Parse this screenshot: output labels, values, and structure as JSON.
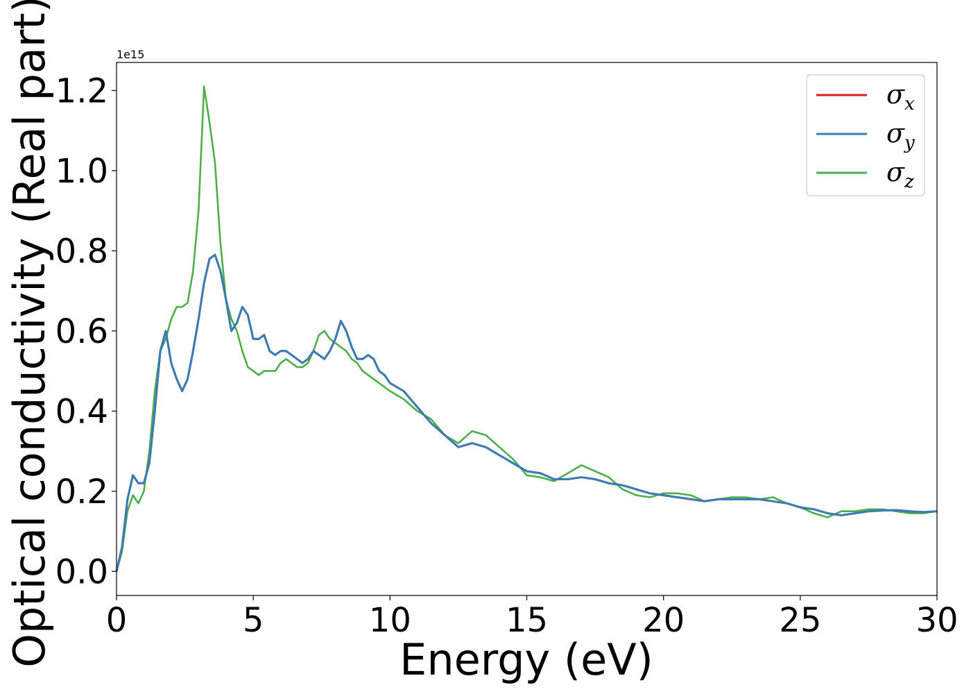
{
  "chart_data": {
    "type": "line",
    "title": "",
    "xlabel": "Energy (eV)",
    "ylabel": "Optical conductivity (Real part)",
    "y_offset_label": "1e15",
    "xlim": [
      0,
      30
    ],
    "ylim": [
      -0.06,
      1.27
    ],
    "x_ticks": [
      0,
      5,
      10,
      15,
      20,
      25,
      30
    ],
    "x_tick_labels": [
      "0",
      "5",
      "10",
      "15",
      "20",
      "25",
      "30"
    ],
    "y_ticks": [
      0.0,
      0.2,
      0.4,
      0.6,
      0.8,
      1.0,
      1.2
    ],
    "y_tick_labels": [
      "0.0",
      "0.2",
      "0.4",
      "0.6",
      "0.8",
      "1.0",
      "1.2"
    ],
    "grid": false,
    "legend_position": "top-right",
    "x": [
      0,
      0.2,
      0.4,
      0.6,
      0.8,
      1.0,
      1.2,
      1.4,
      1.6,
      1.8,
      2.0,
      2.2,
      2.4,
      2.6,
      2.8,
      3.0,
      3.2,
      3.4,
      3.6,
      3.8,
      4.0,
      4.2,
      4.4,
      4.6,
      4.8,
      5.0,
      5.2,
      5.4,
      5.6,
      5.8,
      6.0,
      6.2,
      6.4,
      6.6,
      6.8,
      7.0,
      7.2,
      7.4,
      7.6,
      7.8,
      8.0,
      8.2,
      8.4,
      8.6,
      8.8,
      9.0,
      9.2,
      9.4,
      9.6,
      9.8,
      10.0,
      10.5,
      11.0,
      11.5,
      12.0,
      12.5,
      13.0,
      13.5,
      14.0,
      14.5,
      15.0,
      15.5,
      16.0,
      16.5,
      17.0,
      17.5,
      18.0,
      18.5,
      19.0,
      19.5,
      20.0,
      20.5,
      21.0,
      21.5,
      22.0,
      22.5,
      23.0,
      23.5,
      24.0,
      24.5,
      25.0,
      25.5,
      26.0,
      26.5,
      27.0,
      27.5,
      28.0,
      28.5,
      29.0,
      29.5,
      30.0
    ],
    "series": [
      {
        "name": "σx",
        "color": "#e41a1c",
        "values": [
          0.0,
          0.06,
          0.18,
          0.24,
          0.22,
          0.22,
          0.27,
          0.4,
          0.55,
          0.6,
          0.52,
          0.48,
          0.45,
          0.48,
          0.55,
          0.63,
          0.72,
          0.78,
          0.79,
          0.75,
          0.68,
          0.6,
          0.62,
          0.66,
          0.64,
          0.58,
          0.58,
          0.59,
          0.55,
          0.54,
          0.55,
          0.55,
          0.54,
          0.53,
          0.52,
          0.53,
          0.55,
          0.54,
          0.53,
          0.55,
          0.58,
          0.625,
          0.6,
          0.56,
          0.53,
          0.53,
          0.54,
          0.53,
          0.5,
          0.49,
          0.47,
          0.45,
          0.41,
          0.37,
          0.34,
          0.31,
          0.32,
          0.31,
          0.29,
          0.27,
          0.25,
          0.245,
          0.23,
          0.23,
          0.235,
          0.23,
          0.22,
          0.215,
          0.205,
          0.195,
          0.19,
          0.185,
          0.18,
          0.175,
          0.18,
          0.18,
          0.18,
          0.18,
          0.175,
          0.17,
          0.16,
          0.155,
          0.145,
          0.14,
          0.145,
          0.15,
          0.152,
          0.153,
          0.15,
          0.148,
          0.15
        ]
      },
      {
        "name": "σy",
        "color": "#377eb8",
        "values": [
          0.0,
          0.06,
          0.18,
          0.24,
          0.22,
          0.22,
          0.27,
          0.4,
          0.55,
          0.6,
          0.52,
          0.48,
          0.45,
          0.48,
          0.55,
          0.63,
          0.72,
          0.78,
          0.79,
          0.75,
          0.68,
          0.6,
          0.62,
          0.66,
          0.64,
          0.58,
          0.58,
          0.59,
          0.55,
          0.54,
          0.55,
          0.55,
          0.54,
          0.53,
          0.52,
          0.53,
          0.55,
          0.54,
          0.53,
          0.55,
          0.58,
          0.625,
          0.6,
          0.56,
          0.53,
          0.53,
          0.54,
          0.53,
          0.5,
          0.49,
          0.47,
          0.45,
          0.41,
          0.37,
          0.34,
          0.31,
          0.32,
          0.31,
          0.29,
          0.27,
          0.25,
          0.245,
          0.23,
          0.23,
          0.235,
          0.23,
          0.22,
          0.215,
          0.205,
          0.195,
          0.19,
          0.185,
          0.18,
          0.175,
          0.18,
          0.18,
          0.18,
          0.18,
          0.175,
          0.17,
          0.16,
          0.155,
          0.145,
          0.14,
          0.145,
          0.15,
          0.152,
          0.153,
          0.15,
          0.148,
          0.15
        ]
      },
      {
        "name": "σz",
        "color": "#4daf4a",
        "values": [
          0.0,
          0.05,
          0.15,
          0.19,
          0.17,
          0.2,
          0.3,
          0.45,
          0.55,
          0.58,
          0.63,
          0.66,
          0.66,
          0.67,
          0.75,
          0.9,
          1.21,
          1.12,
          1.02,
          0.82,
          0.68,
          0.63,
          0.6,
          0.55,
          0.51,
          0.5,
          0.49,
          0.5,
          0.5,
          0.5,
          0.52,
          0.53,
          0.52,
          0.51,
          0.51,
          0.52,
          0.55,
          0.59,
          0.6,
          0.58,
          0.57,
          0.56,
          0.55,
          0.53,
          0.52,
          0.5,
          0.49,
          0.48,
          0.47,
          0.46,
          0.45,
          0.43,
          0.4,
          0.38,
          0.34,
          0.32,
          0.35,
          0.34,
          0.31,
          0.28,
          0.24,
          0.235,
          0.225,
          0.245,
          0.265,
          0.25,
          0.235,
          0.205,
          0.19,
          0.185,
          0.195,
          0.195,
          0.19,
          0.175,
          0.18,
          0.185,
          0.185,
          0.18,
          0.185,
          0.17,
          0.16,
          0.145,
          0.135,
          0.15,
          0.15,
          0.155,
          0.155,
          0.15,
          0.145,
          0.145,
          0.15
        ]
      }
    ]
  }
}
